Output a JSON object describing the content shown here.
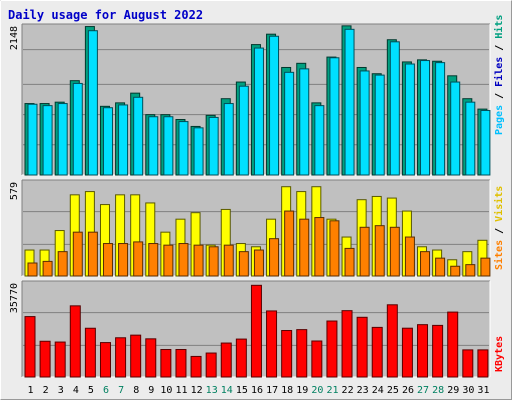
{
  "chart_data": {
    "type": "bar",
    "title": "Daily usage for August 2022",
    "categories": [
      "1",
      "2",
      "3",
      "4",
      "5",
      "6",
      "7",
      "8",
      "9",
      "10",
      "11",
      "12",
      "13",
      "14",
      "15",
      "16",
      "17",
      "18",
      "19",
      "20",
      "21",
      "22",
      "23",
      "24",
      "25",
      "26",
      "27",
      "28",
      "29",
      "30",
      "31"
    ],
    "weekend_days": [
      "6",
      "7",
      "13",
      "14",
      "20",
      "21",
      "27",
      "28"
    ],
    "panels": [
      {
        "name": "top",
        "ymax": 2148,
        "ymax_label": "2148",
        "legend": [
          "Pages",
          "Files",
          "Hits"
        ],
        "series": [
          {
            "name": "Hits",
            "color": "#00a080",
            "values": [
              1030,
              1030,
              1050,
              1360,
              2140,
              990,
              1040,
              1180,
              870,
              870,
              800,
              700,
              860,
              1100,
              1340,
              1880,
              2030,
              1550,
              1610,
              1040,
              1700,
              2150,
              1550,
              1460,
              1950,
              1630,
              1660,
              1640,
              1430,
              1100,
              950
            ]
          },
          {
            "name": "Files",
            "color": "#00e0ff",
            "values": [
              1020,
              1000,
              1030,
              1320,
              2080,
              970,
              1010,
              1120,
              840,
              840,
              770,
              680,
              830,
              1030,
              1280,
              1830,
              2000,
              1480,
              1530,
              1000,
              1690,
              2100,
              1500,
              1440,
              1920,
              1600,
              1650,
              1620,
              1340,
              1050,
              930
            ]
          }
        ]
      },
      {
        "name": "middle",
        "ymax": 579,
        "ymax_label": "579",
        "legend": [
          "Sites",
          "Visits"
        ],
        "series": [
          {
            "name": "Visits",
            "color": "#ffff00",
            "values": [
              160,
              160,
              280,
              500,
              520,
              440,
              500,
              500,
              450,
              270,
              350,
              390,
              190,
              410,
              200,
              180,
              350,
              550,
              520,
              550,
              350,
              240,
              470,
              490,
              480,
              400,
              180,
              160,
              100,
              150,
              220
            ]
          },
          {
            "name": "Sites",
            "color": "#ff8000",
            "values": [
              80,
              90,
              150,
              270,
              270,
              200,
              200,
              210,
              200,
              190,
              200,
              190,
              180,
              190,
              150,
              160,
              230,
              400,
              350,
              360,
              340,
              170,
              300,
              310,
              300,
              240,
              150,
              110,
              60,
              70,
              110
            ]
          }
        ]
      },
      {
        "name": "bottom",
        "ymax": 35770,
        "ymax_label": "35770",
        "legend": [
          "KBytes"
        ],
        "series": [
          {
            "name": "KBytes",
            "color": "#ff0000",
            "values": [
              22990,
              13600,
              13300,
              27080,
              18550,
              13100,
              14930,
              15930,
              14530,
              10460,
              10460,
              7830,
              9120,
              12920,
              14430,
              34890,
              25140,
              17690,
              18030,
              13700,
              21300,
              25250,
              22720,
              18880,
              27480,
              18570,
              19920,
              19640,
              24700,
              10320,
              10320
            ]
          }
        ]
      }
    ]
  }
}
